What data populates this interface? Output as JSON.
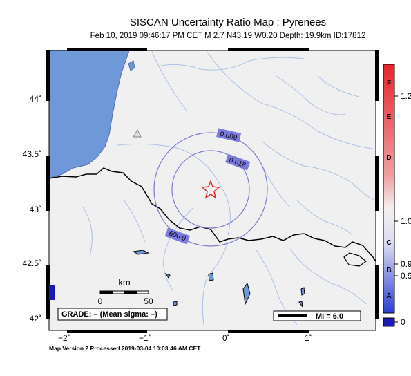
{
  "title": "SISCAN Uncertainty Ratio Map : Pyrenees",
  "subtitle": "Feb 10, 2019 09:46:17 PM CET   M 2.7   N43.19 W0.20   Depth: 19.9km   ID:17812",
  "footer": "Map Version 2 Processed 2019-03-04 10:03:46 AM CET",
  "latitude_labels": [
    "44˚",
    "43.5˚",
    "43˚",
    "42.5˚",
    "42˚"
  ],
  "longitude_labels": [
    "−2˚",
    "−1˚",
    "0˚",
    "1˚"
  ],
  "contour_labels": [
    "0.009",
    "0.018",
    "0.009"
  ],
  "scale_bar": {
    "unit": "km",
    "min": "0",
    "max": "50"
  },
  "grade_box": "GRADE: – (Mean sigma: –)",
  "mi_legend": "MI = 6.0",
  "epicenter": {
    "symbol": "star-icon",
    "lat": 43.19,
    "lon": -0.2
  },
  "colorbar": {
    "letters": [
      "F",
      "E",
      "D",
      "C",
      "B",
      "A"
    ],
    "values": [
      "1.2",
      "1.0",
      "0.9",
      "0.9",
      "0"
    ],
    "colors": {
      "top": "#e8242b",
      "bottom": "#2a3fd6",
      "nodata": "#1a1ab8"
    }
  },
  "colors": {
    "sea": "#6f98d8",
    "land": "#f0f0f0",
    "contour": "#7a7acc",
    "label_box": "#7b7be0",
    "border": "#000000",
    "rivers": "#a8c0e6"
  }
}
